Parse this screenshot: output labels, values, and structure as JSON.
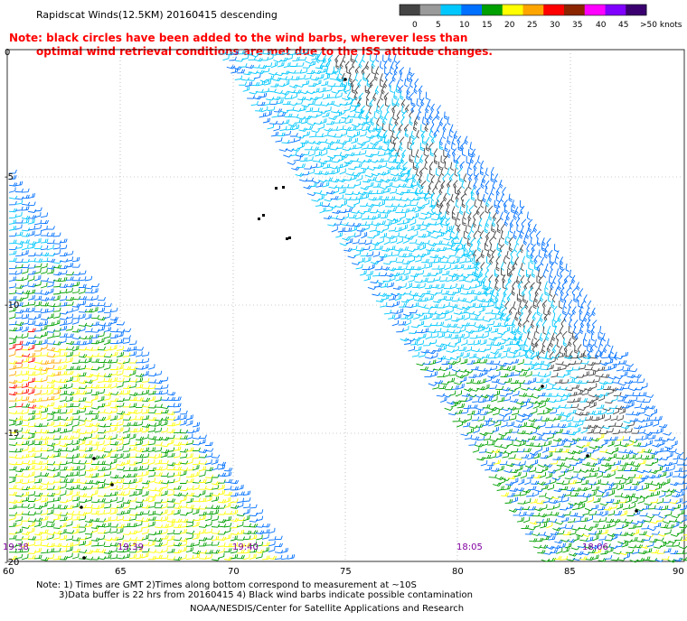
{
  "header": {
    "title": "Rapidscat Winds(12.5KM) 20160415 descending",
    "note_line1": "Note: black circles have been added to the wind barbs, wherever less than",
    "note_line2": "optimal wind retrieval conditions are met due to the ISS attitude changes."
  },
  "colorbar": {
    "labels": [
      "0",
      "5",
      "10",
      "15",
      "20",
      "25",
      "30",
      "35",
      "40",
      "45",
      ">50 knots"
    ],
    "colors": [
      "#444444",
      "#9a9a9a",
      "#00c8ff",
      "#0070ff",
      "#00a000",
      "#ffff00",
      "#ffa500",
      "#ff0000",
      "#8b2500",
      "#ff00ff",
      "#8000ff",
      "#3a0070"
    ]
  },
  "map": {
    "lat_labels": [
      "0",
      "-5",
      "-10",
      "-15",
      "-20"
    ],
    "lon_labels": [
      "60",
      "65",
      "70",
      "75",
      "80",
      "85",
      "90"
    ],
    "times": [
      "19:38",
      "19:39",
      "19:40",
      "18:05",
      "18:06"
    ],
    "colors": {
      "grid": "#9a9a9a",
      "land": "#000000",
      "time": "#8000a0",
      "note": "#ff0000"
    }
  },
  "footer": {
    "line1": "Note: 1) Times are GMT 2)Times along bottom correspond to measurement at ~10S",
    "line2": "3)Data buffer is 22 hrs from 20160415 4) Black wind barbs indicate possible contamination",
    "line3": "NOAA/NESDIS/Center for Satellite Applications and Research"
  }
}
